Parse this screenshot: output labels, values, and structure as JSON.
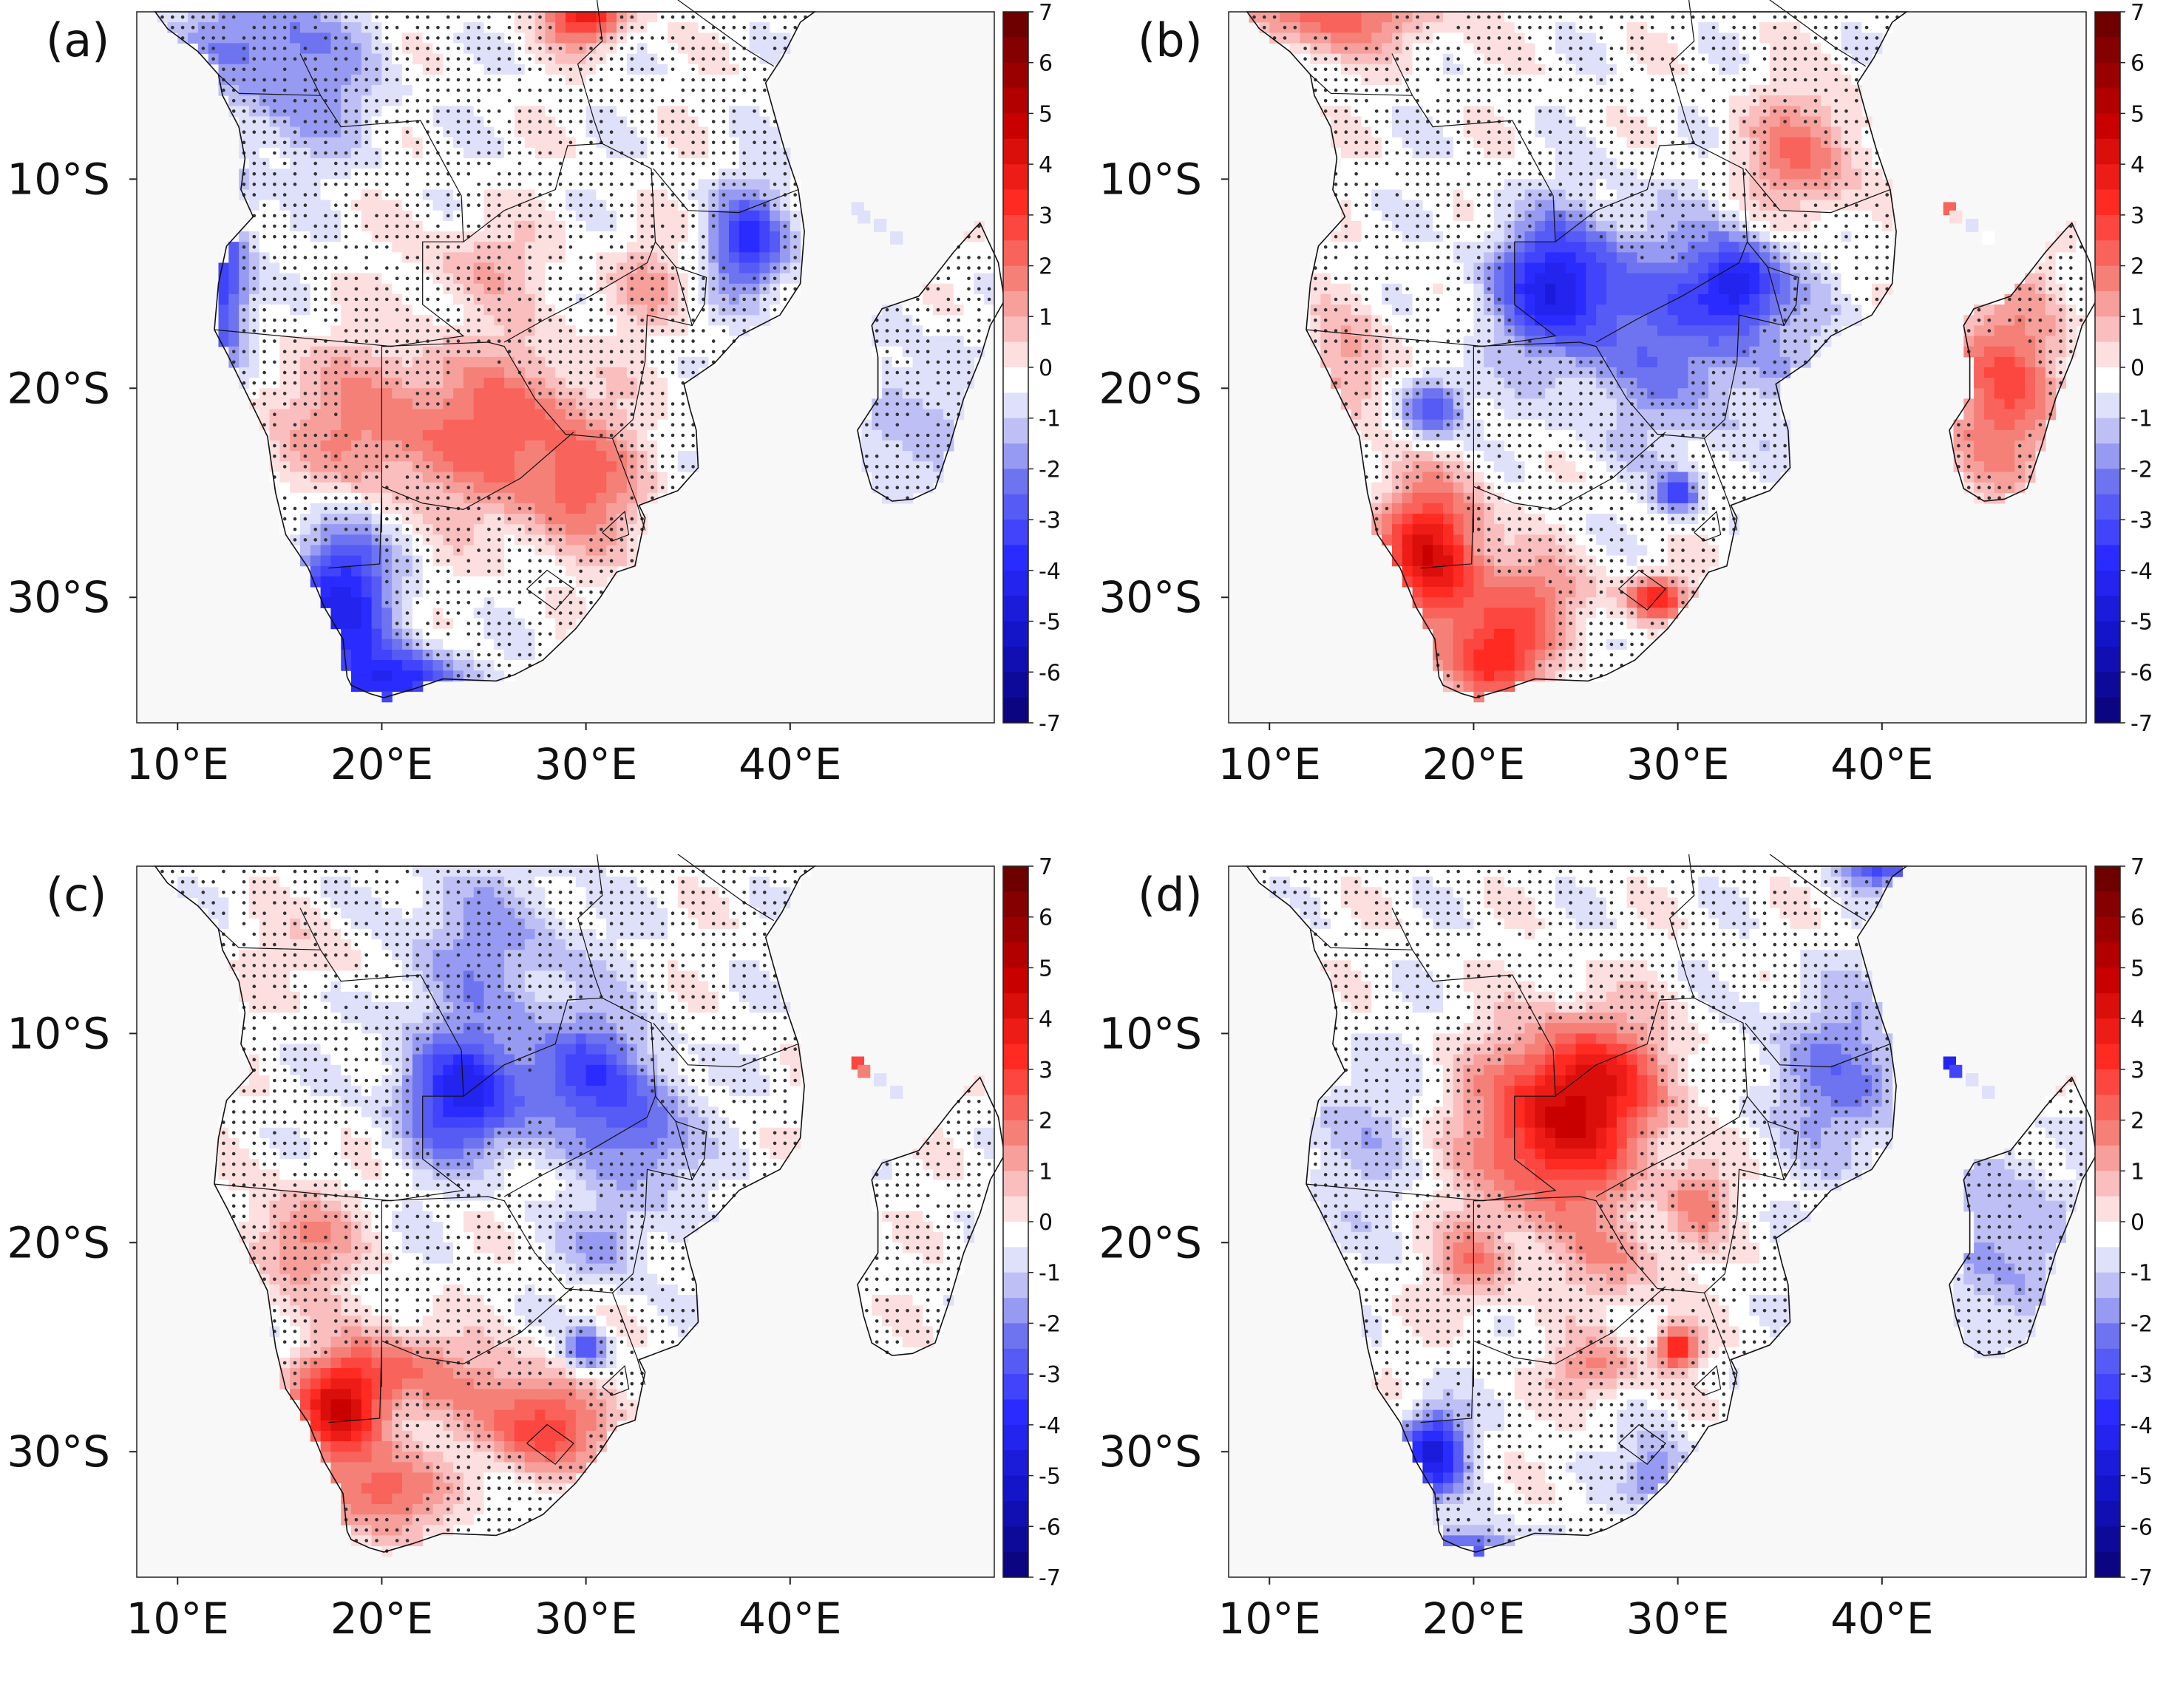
{
  "panels": [
    {
      "id": "a",
      "label": "(a)",
      "pattern": "a"
    },
    {
      "id": "b",
      "label": "(b)",
      "pattern": "b"
    },
    {
      "id": "c",
      "label": "(c)",
      "pattern": "c"
    },
    {
      "id": "d",
      "label": "(d)",
      "pattern": "d"
    }
  ],
  "axes": {
    "lon_ticks": [
      "10°E",
      "20°E",
      "30°E",
      "40°E"
    ],
    "lat_ticks": [
      "10°S",
      "20°S",
      "30°S"
    ]
  },
  "colorbar": {
    "ticks": [
      "7",
      "6",
      "5",
      "4",
      "3",
      "2",
      "1",
      "0",
      "-1",
      "-2",
      "-3",
      "-4",
      "-5",
      "-6",
      "-7"
    ],
    "min": -7,
    "max": 7,
    "colors": {
      "neg_max": "#08006a",
      "neg_mid": "#2a2cff",
      "zero": "#ffffff",
      "pos_mid": "#ff2a22",
      "pos_max": "#6e0000"
    }
  },
  "overlay": {
    "stipple_color": "#333333",
    "border_color": "#111111",
    "ocean_color": "#f8f8f8"
  }
}
